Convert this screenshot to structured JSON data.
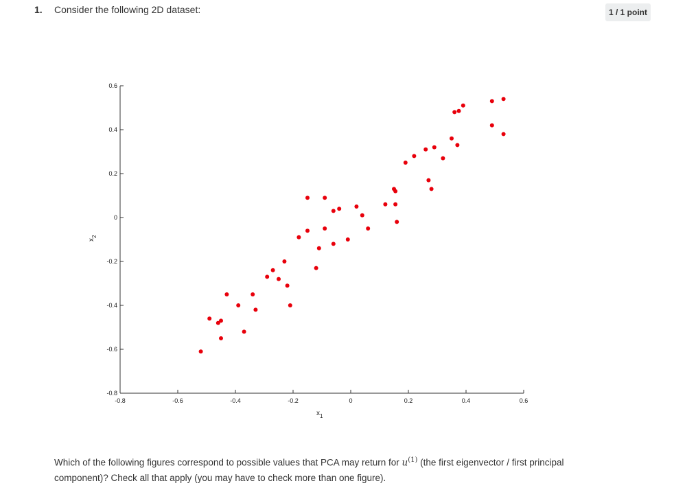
{
  "question": {
    "number": "1.",
    "title": "Consider the following 2D dataset:",
    "score": "1 / 1 point",
    "body_before": "Which of the following figures correspond to possible values that PCA may return for ",
    "math_var": "u",
    "math_sup": "(1)",
    "body_after": " (the first eigenvector / first principal component)? Check all that apply (you may have to check more than one figure)."
  },
  "chart_data": {
    "type": "scatter",
    "title": "",
    "xlabel": "x1",
    "ylabel": "x2",
    "xlim": [
      -0.8,
      0.6
    ],
    "ylim": [
      -0.8,
      0.6
    ],
    "x_ticks": [
      "-0.8",
      "-0.6",
      "-0.4",
      "-0.2",
      "0",
      "0.2",
      "0.4",
      "0.6"
    ],
    "y_ticks": [
      "0.6",
      "0.4",
      "0.2",
      "0",
      "-0.2",
      "-0.4",
      "-0.6",
      "-0.8"
    ],
    "marker_color": "#e8000b",
    "points": [
      {
        "x": -0.52,
        "y": -0.61
      },
      {
        "x": -0.49,
        "y": -0.46
      },
      {
        "x": -0.46,
        "y": -0.48
      },
      {
        "x": -0.45,
        "y": -0.47
      },
      {
        "x": -0.45,
        "y": -0.55
      },
      {
        "x": -0.43,
        "y": -0.35
      },
      {
        "x": -0.39,
        "y": -0.4
      },
      {
        "x": -0.37,
        "y": -0.52
      },
      {
        "x": -0.34,
        "y": -0.35
      },
      {
        "x": -0.33,
        "y": -0.42
      },
      {
        "x": -0.29,
        "y": -0.27
      },
      {
        "x": -0.27,
        "y": -0.24
      },
      {
        "x": -0.25,
        "y": -0.28
      },
      {
        "x": -0.23,
        "y": -0.2
      },
      {
        "x": -0.22,
        "y": -0.31
      },
      {
        "x": -0.21,
        "y": -0.4
      },
      {
        "x": -0.18,
        "y": -0.09
      },
      {
        "x": -0.15,
        "y": 0.09
      },
      {
        "x": -0.15,
        "y": -0.06
      },
      {
        "x": -0.12,
        "y": -0.23
      },
      {
        "x": -0.11,
        "y": -0.14
      },
      {
        "x": -0.09,
        "y": 0.09
      },
      {
        "x": -0.09,
        "y": -0.05
      },
      {
        "x": -0.06,
        "y": -0.12
      },
      {
        "x": -0.06,
        "y": 0.03
      },
      {
        "x": -0.04,
        "y": 0.04
      },
      {
        "x": -0.01,
        "y": -0.1
      },
      {
        "x": 0.02,
        "y": 0.05
      },
      {
        "x": 0.04,
        "y": 0.01
      },
      {
        "x": 0.06,
        "y": -0.05
      },
      {
        "x": 0.12,
        "y": 0.06
      },
      {
        "x": 0.15,
        "y": 0.13
      },
      {
        "x": 0.155,
        "y": 0.12
      },
      {
        "x": 0.155,
        "y": 0.06
      },
      {
        "x": 0.16,
        "y": -0.02
      },
      {
        "x": 0.19,
        "y": 0.25
      },
      {
        "x": 0.22,
        "y": 0.28
      },
      {
        "x": 0.26,
        "y": 0.31
      },
      {
        "x": 0.27,
        "y": 0.17
      },
      {
        "x": 0.28,
        "y": 0.13
      },
      {
        "x": 0.29,
        "y": 0.32
      },
      {
        "x": 0.32,
        "y": 0.27
      },
      {
        "x": 0.35,
        "y": 0.36
      },
      {
        "x": 0.36,
        "y": 0.48
      },
      {
        "x": 0.37,
        "y": 0.33
      },
      {
        "x": 0.375,
        "y": 0.485
      },
      {
        "x": 0.39,
        "y": 0.51
      },
      {
        "x": 0.49,
        "y": 0.53
      },
      {
        "x": 0.49,
        "y": 0.42
      },
      {
        "x": 0.53,
        "y": 0.54
      },
      {
        "x": 0.53,
        "y": 0.38
      }
    ]
  }
}
